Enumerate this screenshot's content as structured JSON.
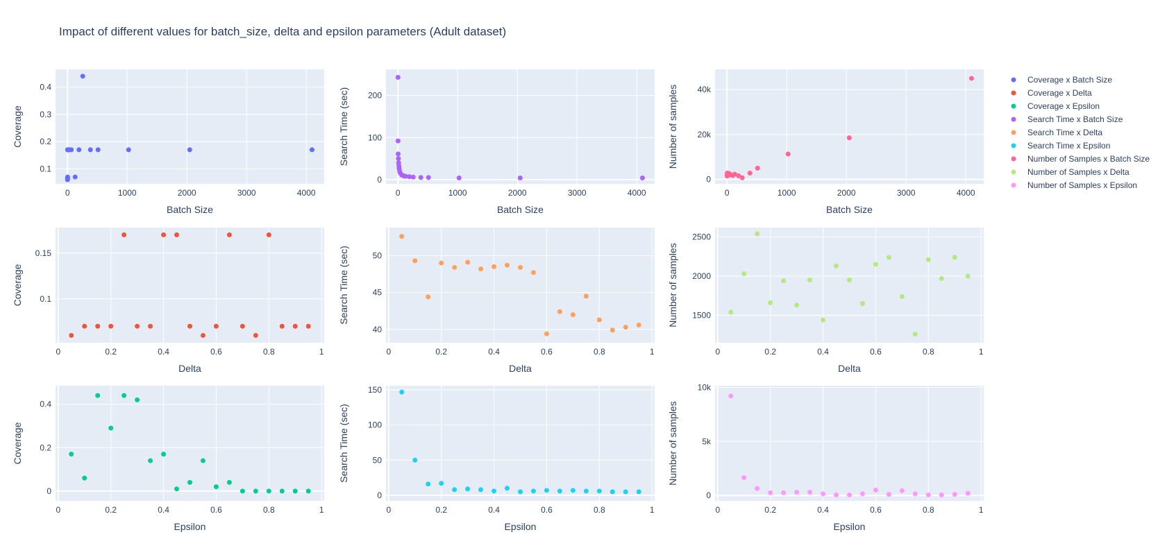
{
  "title": "Impact of different values for batch_size, delta and epsilon parameters (Adult dataset)",
  "chart_data": {
    "type": "scatter",
    "title": "Impact of different values for batch_size, delta and epsilon parameters (Adult dataset)",
    "grid": true,
    "legend_position": "right",
    "legend": [
      {
        "name": "Coverage x Batch Size",
        "color": "#636efa"
      },
      {
        "name": "Coverage x Delta",
        "color": "#EF553B"
      },
      {
        "name": "Coverage x Epsilon",
        "color": "#00cc96"
      },
      {
        "name": "Search Time x Batch Size",
        "color": "#ab63fa"
      },
      {
        "name": "Search Time x Delta",
        "color": "#FFA15A"
      },
      {
        "name": "Search Time x Epsilon",
        "color": "#19d3f3"
      },
      {
        "name": "Number of Samples x Batch Size",
        "color": "#FF6692"
      },
      {
        "name": "Number of Samples x Delta",
        "color": "#B6E880"
      },
      {
        "name": "Number of Samples x Epsilon",
        "color": "#FF97FF"
      }
    ],
    "subplots": [
      {
        "id": "cov-batch",
        "row": 1,
        "col": 1,
        "series": "Coverage x Batch Size",
        "color": "#636efa",
        "xlabel": "Batch Size",
        "ylabel": "Coverage",
        "xlim": [
          -200,
          4300
        ],
        "ylim": [
          0.045,
          0.465
        ],
        "xticks": [
          0,
          1000,
          2000,
          3000,
          4000
        ],
        "xtick_labels": [
          "0",
          "1000",
          "2000",
          "3000",
          "4000"
        ],
        "yticks": [
          0.1,
          0.2,
          0.3,
          0.4
        ],
        "ytick_labels": [
          "0.1",
          "0.2",
          "0.3",
          "0.4"
        ],
        "x": [
          1,
          2,
          4,
          8,
          16,
          32,
          64,
          128,
          192,
          256,
          384,
          512,
          1024,
          2048,
          4096,
          1,
          2,
          4,
          8
        ],
        "y": [
          0.06,
          0.07,
          0.17,
          0.17,
          0.17,
          0.17,
          0.17,
          0.07,
          0.17,
          0.44,
          0.17,
          0.17,
          0.17,
          0.17,
          0.17,
          0.065,
          0.17,
          0.17,
          0.17
        ]
      },
      {
        "id": "time-batch",
        "row": 1,
        "col": 2,
        "series": "Search Time x Batch Size",
        "color": "#ab63fa",
        "xlabel": "Batch Size",
        "ylabel": "Search Time (sec)",
        "xlim": [
          -200,
          4300
        ],
        "ylim": [
          -10,
          262
        ],
        "xticks": [
          0,
          1000,
          2000,
          3000,
          4000
        ],
        "xtick_labels": [
          "0",
          "1000",
          "2000",
          "3000",
          "4000"
        ],
        "yticks": [
          0,
          100,
          200
        ],
        "ytick_labels": [
          "0",
          "100",
          "200"
        ],
        "x": [
          1,
          2,
          4,
          8,
          12,
          16,
          20,
          24,
          32,
          48,
          64,
          96,
          128,
          192,
          256,
          384,
          512,
          1024,
          2048,
          4096
        ],
        "y": [
          243,
          92,
          61,
          50,
          40,
          33,
          28,
          24,
          18,
          14,
          11,
          9,
          8,
          7,
          6,
          5,
          5,
          4,
          4,
          4
        ]
      },
      {
        "id": "samples-batch",
        "row": 1,
        "col": 3,
        "series": "Number of Samples x Batch Size",
        "color": "#FF6692",
        "xlabel": "Batch Size",
        "ylabel": "Number of samples",
        "xlim": [
          -200,
          4300
        ],
        "ylim": [
          -2000,
          49000
        ],
        "xticks": [
          0,
          1000,
          2000,
          3000,
          4000
        ],
        "xtick_labels": [
          "0",
          "1000",
          "2000",
          "3000",
          "4000"
        ],
        "yticks": [
          0,
          20000,
          40000
        ],
        "ytick_labels": [
          "0",
          "20k",
          "40k"
        ],
        "x": [
          1,
          2,
          4,
          8,
          16,
          24,
          32,
          48,
          64,
          96,
          128,
          192,
          256,
          384,
          512,
          1024,
          2048,
          4096
        ],
        "y": [
          2000,
          1500,
          2800,
          2400,
          2200,
          1800,
          2600,
          2300,
          2000,
          1700,
          2300,
          1600,
          700,
          2800,
          5000,
          11300,
          18500,
          45000
        ]
      },
      {
        "id": "cov-delta",
        "row": 2,
        "col": 1,
        "series": "Coverage x Delta",
        "color": "#EF553B",
        "xlabel": "Delta",
        "ylabel": "Coverage",
        "xlim": [
          -0.01,
          1.01
        ],
        "ylim": [
          0.052,
          0.178
        ],
        "xticks": [
          0,
          0.2,
          0.4,
          0.6,
          0.8,
          1
        ],
        "xtick_labels": [
          "0",
          "0.2",
          "0.4",
          "0.6",
          "0.8",
          "1"
        ],
        "yticks": [
          0.1,
          0.15
        ],
        "ytick_labels": [
          "0.1",
          "0.15"
        ],
        "x": [
          0.05,
          0.1,
          0.15,
          0.2,
          0.25,
          0.3,
          0.35,
          0.4,
          0.45,
          0.5,
          0.55,
          0.6,
          0.65,
          0.7,
          0.75,
          0.8,
          0.85,
          0.9,
          0.95
        ],
        "y": [
          0.06,
          0.07,
          0.07,
          0.07,
          0.17,
          0.07,
          0.07,
          0.17,
          0.17,
          0.07,
          0.06,
          0.07,
          0.17,
          0.07,
          0.06,
          0.17,
          0.07,
          0.07,
          0.07
        ]
      },
      {
        "id": "time-delta",
        "row": 2,
        "col": 2,
        "series": "Search Time x Delta",
        "color": "#FFA15A",
        "xlabel": "Delta",
        "ylabel": "Search Time (sec)",
        "xlim": [
          -0.01,
          1.01
        ],
        "ylim": [
          38.2,
          53.8
        ],
        "xticks": [
          0,
          0.2,
          0.4,
          0.6,
          0.8,
          1
        ],
        "xtick_labels": [
          "0",
          "0.2",
          "0.4",
          "0.6",
          "0.8",
          "1"
        ],
        "yticks": [
          40,
          45,
          50
        ],
        "ytick_labels": [
          "40",
          "45",
          "50"
        ],
        "x": [
          0.05,
          0.1,
          0.15,
          0.2,
          0.25,
          0.3,
          0.35,
          0.4,
          0.45,
          0.5,
          0.55,
          0.6,
          0.65,
          0.7,
          0.75,
          0.8,
          0.85,
          0.9,
          0.95
        ],
        "y": [
          52.6,
          49.3,
          44.4,
          49.0,
          48.4,
          49.1,
          48.2,
          48.5,
          48.7,
          48.4,
          47.7,
          39.4,
          42.4,
          42.0,
          44.5,
          41.3,
          39.9,
          40.3,
          40.6
        ]
      },
      {
        "id": "samples-delta",
        "row": 2,
        "col": 3,
        "series": "Number of Samples x Delta",
        "color": "#B6E880",
        "xlabel": "Delta",
        "ylabel": "Number of samples",
        "xlim": [
          -0.01,
          1.01
        ],
        "ylim": [
          1150,
          2620
        ],
        "xticks": [
          0,
          0.2,
          0.4,
          0.6,
          0.8,
          1
        ],
        "xtick_labels": [
          "0",
          "0.2",
          "0.4",
          "0.6",
          "0.8",
          "1"
        ],
        "yticks": [
          1500,
          2000,
          2500
        ],
        "ytick_labels": [
          "1500",
          "2000",
          "2500"
        ],
        "x": [
          0.05,
          0.1,
          0.15,
          0.2,
          0.25,
          0.3,
          0.35,
          0.4,
          0.45,
          0.5,
          0.55,
          0.6,
          0.65,
          0.7,
          0.75,
          0.8,
          0.85,
          0.9,
          0.95
        ],
        "y": [
          1540,
          2030,
          2540,
          1660,
          1940,
          1630,
          1950,
          1440,
          2130,
          1950,
          1650,
          2150,
          2240,
          1740,
          1260,
          2210,
          1970,
          2240,
          2000
        ]
      },
      {
        "id": "cov-eps",
        "row": 3,
        "col": 1,
        "series": "Coverage x Epsilon",
        "color": "#00cc96",
        "xlabel": "Epsilon",
        "ylabel": "Coverage",
        "xlim": [
          -0.01,
          1.01
        ],
        "ylim": [
          -0.045,
          0.485
        ],
        "xticks": [
          0,
          0.2,
          0.4,
          0.6,
          0.8,
          1
        ],
        "xtick_labels": [
          "0",
          "0.2",
          "0.4",
          "0.6",
          "0.8",
          "1"
        ],
        "yticks": [
          0,
          0.2,
          0.4
        ],
        "ytick_labels": [
          "0",
          "0.2",
          "0.4"
        ],
        "x": [
          0.05,
          0.1,
          0.15,
          0.2,
          0.25,
          0.3,
          0.35,
          0.4,
          0.45,
          0.5,
          0.55,
          0.6,
          0.65,
          0.7,
          0.75,
          0.8,
          0.85,
          0.9,
          0.95
        ],
        "y": [
          0.17,
          0.06,
          0.44,
          0.29,
          0.44,
          0.42,
          0.14,
          0.17,
          0.01,
          0.04,
          0.14,
          0.02,
          0.04,
          0.0,
          0.0,
          0.0,
          0.0,
          0.0,
          0.0
        ]
      },
      {
        "id": "time-eps",
        "row": 3,
        "col": 2,
        "series": "Search Time x Epsilon",
        "color": "#19d3f3",
        "xlabel": "Epsilon",
        "ylabel": "Search Time (sec)",
        "xlim": [
          -0.01,
          1.01
        ],
        "ylim": [
          -8,
          156
        ],
        "xticks": [
          0,
          0.2,
          0.4,
          0.6,
          0.8,
          1
        ],
        "xtick_labels": [
          "0",
          "0.2",
          "0.4",
          "0.6",
          "0.8",
          "1"
        ],
        "yticks": [
          0,
          50,
          100,
          150
        ],
        "ytick_labels": [
          "0",
          "50",
          "100",
          "150"
        ],
        "x": [
          0.05,
          0.1,
          0.15,
          0.2,
          0.25,
          0.3,
          0.35,
          0.4,
          0.45,
          0.5,
          0.55,
          0.6,
          0.65,
          0.7,
          0.75,
          0.8,
          0.85,
          0.9,
          0.95
        ],
        "y": [
          147,
          50,
          16,
          17,
          8,
          9,
          8,
          6,
          10,
          5,
          6,
          7,
          6,
          7,
          6,
          6,
          5,
          5,
          5
        ]
      },
      {
        "id": "samples-eps",
        "row": 3,
        "col": 3,
        "series": "Number of Samples x Epsilon",
        "color": "#FF97FF",
        "xlabel": "Epsilon",
        "ylabel": "Number of samples",
        "xlim": [
          -0.01,
          1.01
        ],
        "ylim": [
          -500,
          10150
        ],
        "xticks": [
          0,
          0.2,
          0.4,
          0.6,
          0.8,
          1
        ],
        "xtick_labels": [
          "0",
          "0.2",
          "0.4",
          "0.6",
          "0.8",
          "1"
        ],
        "yticks": [
          0,
          5000,
          10000
        ],
        "ytick_labels": [
          "0",
          "5k",
          "10k"
        ],
        "x": [
          0.05,
          0.1,
          0.15,
          0.2,
          0.25,
          0.3,
          0.35,
          0.4,
          0.45,
          0.5,
          0.55,
          0.6,
          0.65,
          0.7,
          0.75,
          0.8,
          0.85,
          0.9,
          0.95
        ],
        "y": [
          9200,
          1650,
          650,
          250,
          250,
          300,
          300,
          150,
          50,
          50,
          150,
          500,
          100,
          450,
          150,
          50,
          50,
          100,
          200
        ]
      }
    ]
  }
}
